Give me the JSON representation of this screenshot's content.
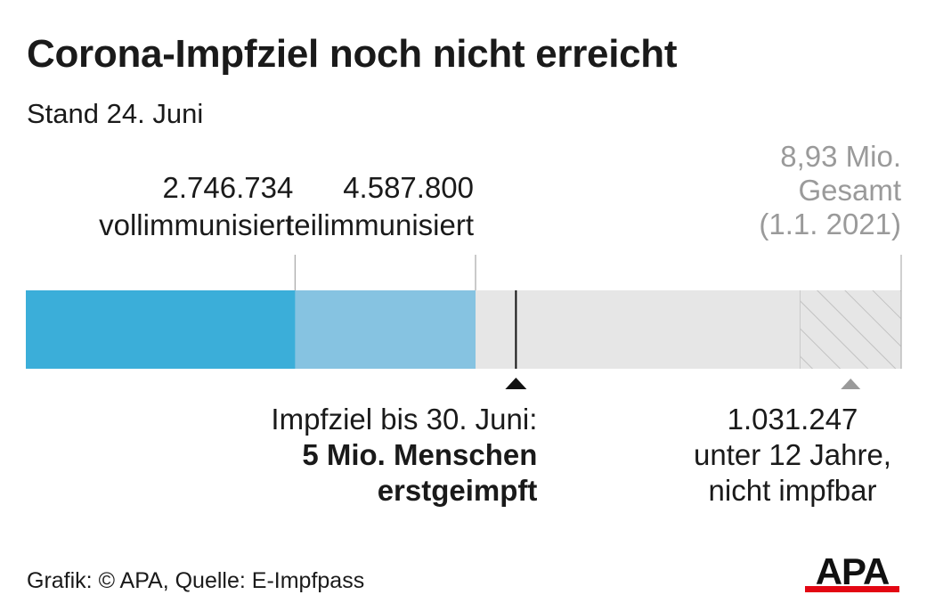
{
  "title": "Corona-Impfziel noch nicht erreicht",
  "subtitle": "Stand 24. Juni",
  "chart_data": {
    "type": "bar",
    "orientation": "horizontal-stacked",
    "xlim": [
      0,
      8930000
    ],
    "segments": [
      {
        "name": "vollimmunisiert",
        "value": 2746734,
        "label_value": "2.746.734",
        "label_name": "vollimmunisiert",
        "color": "#3baed9"
      },
      {
        "name": "teilimmunisiert",
        "value": 4587800,
        "label_value": "4.587.800",
        "label_name": "teilimmunisiert",
        "color": "#86c3e1"
      },
      {
        "name": "remaining",
        "value": 8930000,
        "color": "#e6e6e6"
      }
    ],
    "total": {
      "value": 8930000,
      "lines": [
        "8,93 Mio.",
        "Gesamt",
        "(1.1. 2021)"
      ],
      "color": "#9a9a9a"
    },
    "under12": {
      "value": 1031247,
      "lines": [
        "1.031.247",
        "unter 12 Jahre,",
        "nicht impfbar"
      ],
      "pattern": "hatched"
    },
    "target": {
      "value": 5000000,
      "line1": "Impfziel bis 30. Juni:",
      "line2": "5 Mio. Menschen",
      "line3": "erstgeimpft"
    }
  },
  "source": "Grafik: © APA, Quelle: E-Impfpass",
  "logo": {
    "text": "APA",
    "accent": "#e30613"
  }
}
